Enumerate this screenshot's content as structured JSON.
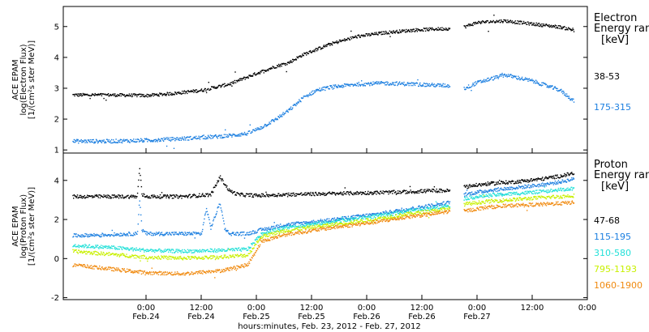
{
  "chart_data": [
    {
      "type": "scatter",
      "panel": "electron",
      "ylabel_lines": [
        "ACE EPAM",
        "log(Electron Flux)",
        "[1/(cm²s ster MeV)]"
      ],
      "legend_title_lines": [
        "Electron",
        "Energy ranges"
      ],
      "legend_unit": "[keV]",
      "ylim": [
        0.9,
        5.65
      ],
      "yticks": [
        1,
        2,
        3,
        4,
        5
      ],
      "ytick_labels": [
        "1",
        "2",
        "3",
        "4",
        "5"
      ],
      "xlim": [
        -18,
        96
      ],
      "series": [
        {
          "name": "38-53",
          "color": "#000000",
          "x": [
            -16,
            -8,
            0,
            6,
            12,
            18,
            24,
            28,
            31,
            34,
            40,
            46,
            52,
            58,
            62,
            66,
            68,
            69,
            72,
            78,
            84,
            90,
            93
          ],
          "y": [
            2.8,
            2.8,
            2.78,
            2.85,
            2.95,
            3.15,
            3.5,
            3.72,
            3.85,
            4.1,
            4.45,
            4.7,
            4.82,
            4.9,
            4.93,
            4.95,
            null,
            5.0,
            5.15,
            5.2,
            5.1,
            5.0,
            4.9
          ]
        },
        {
          "name": "175-315",
          "color": "#1c7fe0",
          "x": [
            -16,
            -8,
            0,
            6,
            12,
            18,
            22,
            25,
            28,
            31,
            34,
            37,
            40,
            46,
            52,
            58,
            62,
            66,
            68,
            69,
            72,
            78,
            84,
            90,
            93
          ],
          "y": [
            1.3,
            1.3,
            1.33,
            1.37,
            1.42,
            1.48,
            1.55,
            1.75,
            2.0,
            2.3,
            2.7,
            2.95,
            3.05,
            3.15,
            3.18,
            3.15,
            3.12,
            3.1,
            null,
            3.0,
            3.2,
            3.45,
            3.25,
            2.95,
            2.6
          ]
        }
      ]
    },
    {
      "type": "scatter",
      "panel": "proton",
      "ylabel_lines": [
        "ACE EPAM",
        "log(Proton Flux)",
        "[1/(cm²s ster MeV)]"
      ],
      "legend_title_lines": [
        "Proton",
        "Energy ranges"
      ],
      "legend_unit": "[keV]",
      "ylim": [
        -2.1,
        5.4
      ],
      "yticks": [
        -2,
        0,
        2,
        4
      ],
      "ytick_labels": [
        "-2",
        "0",
        "2",
        "4"
      ],
      "xlim": [
        -18,
        96
      ],
      "xticks": [
        0,
        12,
        24,
        36,
        48,
        60,
        72,
        84,
        96
      ],
      "xtick_labels_top": [
        "0:00",
        "12:00",
        "0:00",
        "12:00",
        "0:00",
        "12:00",
        "0:00",
        "12:00",
        "0:00"
      ],
      "xtick_labels_bottom": [
        "Feb.24",
        "Feb.24",
        "Feb.25",
        "Feb.25",
        "Feb.26",
        "Feb.26",
        "Feb.27",
        "",
        ""
      ],
      "xlabel": "hours:minutes, Feb. 23, 2012 - Feb. 27, 2012",
      "series": [
        {
          "name": "47-68",
          "color": "#000000",
          "x": [
            -16,
            -8,
            -2,
            -1.5,
            -1,
            0,
            8,
            14,
            16,
            18,
            20,
            24,
            30,
            40,
            50,
            58,
            62,
            66,
            68,
            69,
            74,
            80,
            86,
            90,
            93
          ],
          "y": [
            3.2,
            3.2,
            3.2,
            4.7,
            3.3,
            3.2,
            3.2,
            3.3,
            4.2,
            3.5,
            3.3,
            3.25,
            3.3,
            3.35,
            3.4,
            3.45,
            3.5,
            3.5,
            null,
            3.7,
            3.85,
            3.95,
            4.1,
            4.25,
            4.4
          ]
        },
        {
          "name": "115-195",
          "color": "#1c7fe0",
          "x": [
            -16,
            -8,
            -2,
            -1.5,
            -1,
            0,
            8,
            12,
            13,
            14,
            16,
            17,
            18,
            22,
            25,
            30,
            40,
            50,
            58,
            62,
            66,
            68,
            69,
            74,
            80,
            86,
            90,
            93
          ],
          "y": [
            1.2,
            1.25,
            1.3,
            3.1,
            1.5,
            1.3,
            1.3,
            1.3,
            2.6,
            1.6,
            2.9,
            1.6,
            1.3,
            1.3,
            1.5,
            1.75,
            2.0,
            2.3,
            2.6,
            2.75,
            2.9,
            null,
            3.3,
            3.5,
            3.65,
            3.8,
            3.95,
            4.1
          ]
        },
        {
          "name": "310-580",
          "color": "#22e0d8",
          "x": [
            -16,
            -8,
            0,
            8,
            16,
            22,
            25,
            30,
            40,
            50,
            58,
            62,
            66,
            68,
            69,
            74,
            80,
            86,
            90,
            93
          ],
          "y": [
            0.7,
            0.6,
            0.45,
            0.4,
            0.45,
            0.5,
            1.3,
            1.6,
            1.9,
            2.2,
            2.5,
            2.6,
            2.75,
            null,
            3.1,
            3.25,
            3.35,
            3.45,
            3.55,
            3.6
          ]
        },
        {
          "name": "795-1193",
          "color": "#c8f000",
          "x": [
            -16,
            -8,
            0,
            8,
            16,
            22,
            25,
            30,
            40,
            50,
            58,
            62,
            66,
            68,
            69,
            74,
            80,
            86,
            90,
            93
          ],
          "y": [
            0.4,
            0.25,
            0.1,
            0.05,
            0.1,
            0.2,
            1.15,
            1.45,
            1.75,
            2.05,
            2.35,
            2.45,
            2.6,
            null,
            2.8,
            2.95,
            3.05,
            3.15,
            3.2,
            3.25
          ]
        },
        {
          "name": "1060-1900",
          "color": "#f08a10",
          "x": [
            -16,
            -8,
            0,
            8,
            16,
            22,
            25,
            30,
            40,
            50,
            58,
            62,
            66,
            68,
            69,
            74,
            80,
            86,
            90,
            93
          ],
          "y": [
            -0.3,
            -0.5,
            -0.7,
            -0.75,
            -0.6,
            -0.3,
            0.9,
            1.25,
            1.6,
            1.9,
            2.2,
            2.3,
            2.45,
            null,
            2.45,
            2.65,
            2.75,
            2.8,
            2.85,
            2.9
          ]
        }
      ]
    }
  ]
}
